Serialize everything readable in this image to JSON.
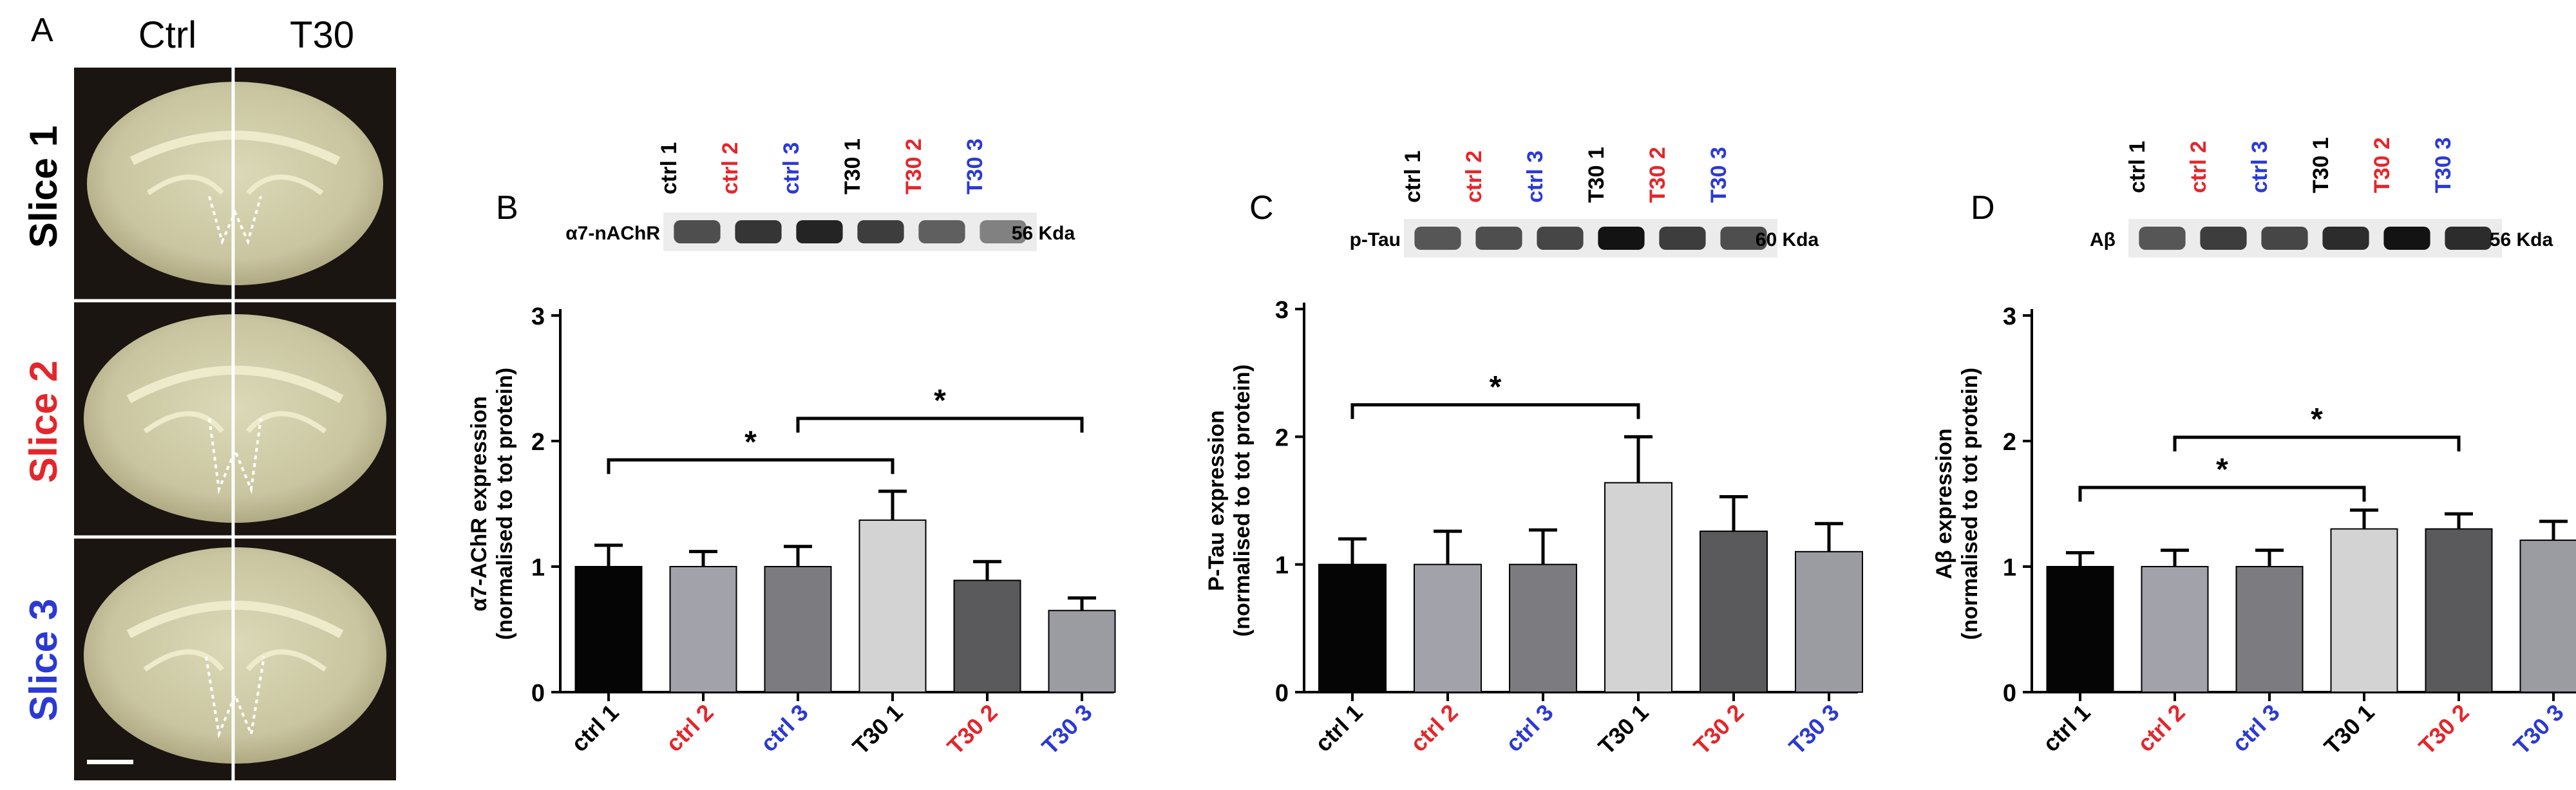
{
  "panel_a": {
    "letter": "A",
    "col_ctrl": "Ctrl",
    "col_t30": "T30",
    "slices": [
      {
        "label": "Slice 1",
        "color": "#000000"
      },
      {
        "label": "Slice 2",
        "color": "#e4262b"
      },
      {
        "label": "Slice 3",
        "color": "#2b39d4"
      }
    ]
  },
  "colors": {
    "black_label": "#000000",
    "red_label": "#e4262b",
    "blue_label": "#2b39d4",
    "bar_fills": [
      "#050505",
      "#a2a2aa",
      "#7b7b80",
      "#d3d3d3",
      "#5a5a5c",
      "#9b9ba2"
    ]
  },
  "chart_data": [
    {
      "type": "bar",
      "panel": "B",
      "protein": "α7-nAChR",
      "kda": "56 Kda",
      "ylabel_line1": "α7-AChR expression",
      "ylabel_line2": "(normalised to tot protein)",
      "ylim": [
        0,
        3
      ],
      "yticks": [
        "0",
        "1",
        "2",
        "3"
      ],
      "categories": [
        "ctrl 1",
        "ctrl 2",
        "ctrl 3",
        "T30 1",
        "T30 2",
        "T30 3"
      ],
      "category_colors": [
        "#000000",
        "#e4262b",
        "#2b39d4",
        "#000000",
        "#e4262b",
        "#2b39d4"
      ],
      "values": [
        1.0,
        1.0,
        1.0,
        1.37,
        0.89,
        0.65
      ],
      "errors": [
        0.17,
        0.12,
        0.16,
        0.23,
        0.15,
        0.1
      ],
      "blot_intensity": [
        0.6,
        0.75,
        0.85,
        0.7,
        0.5,
        0.3
      ],
      "significance": [
        {
          "from": 0,
          "to": 3,
          "level": 1.85,
          "label": "*"
        },
        {
          "from": 2,
          "to": 5,
          "level": 2.18,
          "label": "*"
        }
      ]
    },
    {
      "type": "bar",
      "panel": "C",
      "protein": "p-Tau",
      "kda": "60 Kda",
      "ylabel_line1": "P-Tau expression",
      "ylabel_line2": "(normalised to tot protein)",
      "ylim": [
        0,
        3
      ],
      "yticks": [
        "0",
        "1",
        "2",
        "3"
      ],
      "categories": [
        "ctrl 1",
        "ctrl 2",
        "ctrl 3",
        "T30 1",
        "T30 2",
        "T30 3"
      ],
      "category_colors": [
        "#000000",
        "#e4262b",
        "#2b39d4",
        "#000000",
        "#e4262b",
        "#2b39d4"
      ],
      "values": [
        1.0,
        1.0,
        1.0,
        1.64,
        1.26,
        1.1
      ],
      "errors": [
        0.2,
        0.26,
        0.27,
        0.36,
        0.27,
        0.22
      ],
      "blot_intensity": [
        0.55,
        0.6,
        0.65,
        0.95,
        0.7,
        0.6
      ],
      "significance": [
        {
          "from": 0,
          "to": 3,
          "level": 2.25,
          "label": "*"
        }
      ]
    },
    {
      "type": "bar",
      "panel": "D",
      "protein": "Aβ",
      "kda": "56 Kda",
      "ylabel_line1": "Aβ expression",
      "ylabel_line2": "(normalised to tot protein)",
      "ylim": [
        0,
        3
      ],
      "yticks": [
        "0",
        "1",
        "2",
        "3"
      ],
      "categories": [
        "ctrl 1",
        "ctrl 2",
        "ctrl 3",
        "T30 1",
        "T30 2",
        "T30 3"
      ],
      "category_colors": [
        "#000000",
        "#e4262b",
        "#2b39d4",
        "#000000",
        "#e4262b",
        "#2b39d4"
      ],
      "values": [
        1.0,
        1.0,
        1.0,
        1.3,
        1.3,
        1.21
      ],
      "errors": [
        0.11,
        0.13,
        0.13,
        0.15,
        0.12,
        0.15
      ],
      "blot_intensity": [
        0.55,
        0.7,
        0.65,
        0.8,
        0.95,
        0.8
      ],
      "significance": [
        {
          "from": 0,
          "to": 3,
          "level": 1.63,
          "label": "*"
        },
        {
          "from": 1,
          "to": 4,
          "level": 2.03,
          "label": "*"
        }
      ]
    }
  ]
}
